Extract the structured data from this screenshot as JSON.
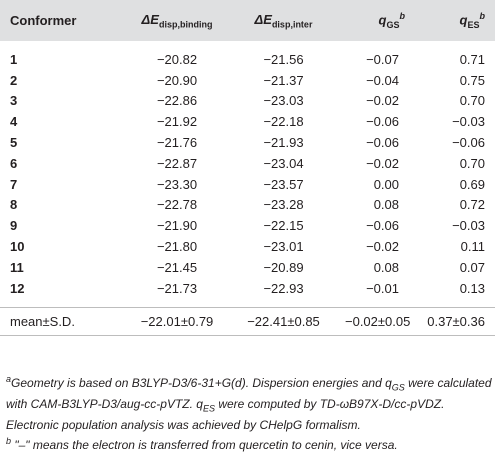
{
  "table": {
    "headers": {
      "conformer": "Conformer",
      "col1_main": "ΔE",
      "col1_sub": "disp,binding",
      "col2_main": "ΔE",
      "col2_sub": "disp,inter",
      "col3_main": "q",
      "col3_sub": "GS",
      "col3_sup": "b",
      "col4_main": "q",
      "col4_sub": "ES",
      "col4_sup": "b"
    },
    "rows": [
      {
        "conformer": "1",
        "binding": "−20.82",
        "inter": "−21.56",
        "qgs": "−0.07",
        "qes": "0.71"
      },
      {
        "conformer": "2",
        "binding": "−20.90",
        "inter": "−21.37",
        "qgs": "−0.04",
        "qes": "0.75"
      },
      {
        "conformer": "3",
        "binding": "−22.86",
        "inter": "−23.03",
        "qgs": "−0.02",
        "qes": "0.70"
      },
      {
        "conformer": "4",
        "binding": "−21.92",
        "inter": "−22.18",
        "qgs": "−0.06",
        "qes": "−0.03"
      },
      {
        "conformer": "5",
        "binding": "−21.76",
        "inter": "−21.93",
        "qgs": "−0.06",
        "qes": "−0.06"
      },
      {
        "conformer": "6",
        "binding": "−22.87",
        "inter": "−23.04",
        "qgs": "−0.02",
        "qes": "0.70"
      },
      {
        "conformer": "7",
        "binding": "−23.30",
        "inter": "−23.57",
        "qgs": "0.00",
        "qes": "0.69"
      },
      {
        "conformer": "8",
        "binding": "−22.78",
        "inter": "−23.28",
        "qgs": "0.08",
        "qes": "0.72"
      },
      {
        "conformer": "9",
        "binding": "−21.90",
        "inter": "−22.15",
        "qgs": "−0.06",
        "qes": "−0.03"
      },
      {
        "conformer": "10",
        "binding": "−21.80",
        "inter": "−23.01",
        "qgs": "−0.02",
        "qes": "0.11"
      },
      {
        "conformer": "11",
        "binding": "−21.45",
        "inter": "−20.89",
        "qgs": "0.08",
        "qes": "0.07"
      },
      {
        "conformer": "12",
        "binding": "−21.73",
        "inter": "−22.93",
        "qgs": "−0.01",
        "qes": "0.13"
      }
    ],
    "mean": {
      "label": "mean±S.D.",
      "binding": "−22.01±0.79",
      "inter": "−22.41±0.85",
      "qgs": "−0.02±0.05",
      "qes": "0.37±0.36"
    }
  },
  "footnotes": {
    "a_mark": "a",
    "a_text_1": "Geometry is based on B3LYP-D3/6-31+G(d). Dispersion energies and q",
    "a_sub_gs": "GS",
    "a_text_2": " were calculated with CAM-B3LYP-D3/aug-cc-pVTZ. q",
    "a_sub_es": "ES",
    "a_text_3": " were computed by TD-ωB97X-D/cc-pVDZ. Electronic population analysis was achieved by CHelpG formalism.",
    "b_mark": "b",
    "b_text": " \"–\" means the electron is transferred from quercetin to cenin, vice versa."
  }
}
